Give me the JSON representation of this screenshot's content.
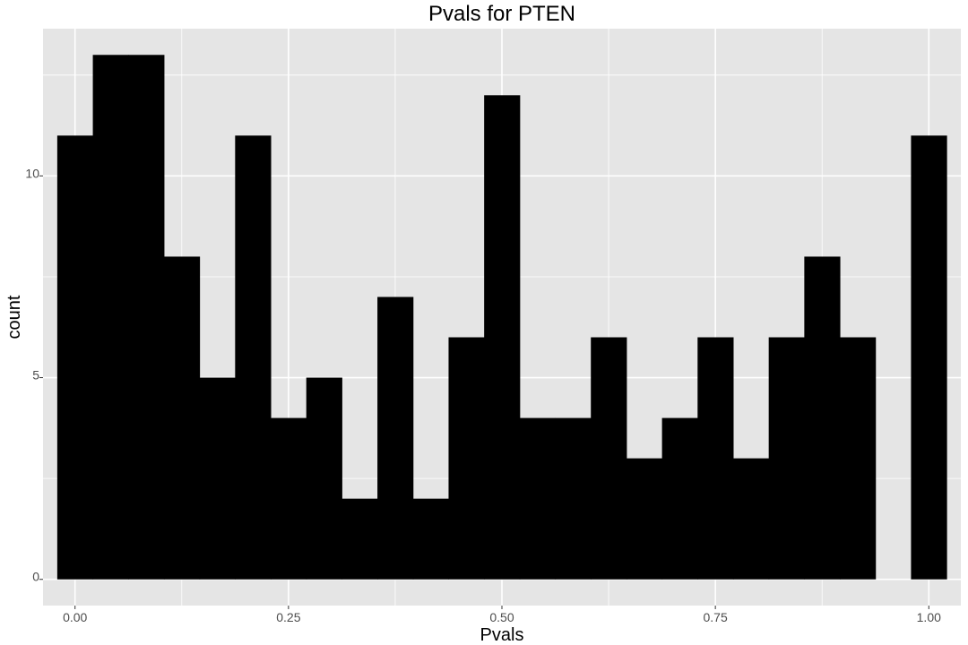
{
  "chart_data": {
    "type": "bar",
    "title": "Pvals for PTEN",
    "xlabel": "Pvals",
    "ylabel": "count",
    "xlim": [
      -0.0375,
      1.0375
    ],
    "ylim": [
      -0.65,
      13.65
    ],
    "x_ticks": [
      0.0,
      0.25,
      0.5,
      0.75,
      1.0
    ],
    "x_tick_labels": [
      "0.00",
      "0.25",
      "0.50",
      "0.75",
      "1.00"
    ],
    "y_ticks": [
      0,
      5,
      10
    ],
    "y_tick_labels": [
      "0",
      "5",
      "10"
    ],
    "bin_width": 0.04167,
    "bin_centers": [
      0.0,
      0.04167,
      0.08333,
      0.125,
      0.16667,
      0.20833,
      0.25,
      0.29167,
      0.33333,
      0.375,
      0.41667,
      0.45833,
      0.5,
      0.54167,
      0.58333,
      0.625,
      0.66667,
      0.70833,
      0.75,
      0.79167,
      0.83333,
      0.875,
      0.91667,
      0.95833,
      1.0
    ],
    "values": [
      11,
      13,
      13,
      8,
      5,
      11,
      4,
      5,
      2,
      7,
      2,
      6,
      12,
      4,
      4,
      6,
      3,
      4,
      6,
      3,
      6,
      8,
      6,
      0,
      11
    ],
    "bar_color": "#000000",
    "panel_background": "#e5e5e5",
    "grid": true,
    "grid_color": "#ffffff",
    "legend": "none"
  }
}
